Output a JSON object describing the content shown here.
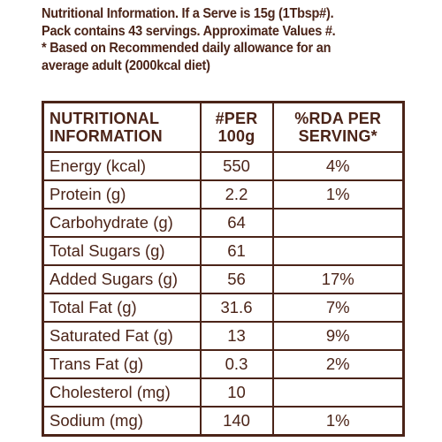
{
  "intro": [
    "Nutritional Information. If a Serve is 15g (1Tbsp#).",
    "Pack contains 43 servings. Approximate Values #.",
    "* Based on Recommended daily allowance for an",
    "average adult (2000kcal diet)"
  ],
  "table": {
    "headers": {
      "col1_line1": "NUTRITIONAL",
      "col1_line2": "INFORMATION",
      "col2_line1": "#PER",
      "col2_line2": "100g",
      "col3_line1": "%RDA PER",
      "col3_line2": "SERVING*"
    },
    "rows": [
      {
        "name": "Energy (kcal)",
        "per100": "550",
        "rda": "4%"
      },
      {
        "name": "Protein (g)",
        "per100": "2.2",
        "rda": "1%"
      },
      {
        "name": "Carbohydrate (g)",
        "per100": "64",
        "rda": ""
      },
      {
        "name": "Total Sugars (g)",
        "per100": "61",
        "rda": ""
      },
      {
        "name": "Added Sugars (g)",
        "per100": "56",
        "rda": "17%"
      },
      {
        "name": "Total Fat (g)",
        "per100": "31.6",
        "rda": "7%"
      },
      {
        "name": "Saturated Fat (g)",
        "per100": "13",
        "rda": "9%"
      },
      {
        "name": "Trans Fat (g)",
        "per100": "0.3",
        "rda": "2%"
      },
      {
        "name": "Cholesterol (mg)",
        "per100": "10",
        "rda": ""
      },
      {
        "name": "Sodium (mg)",
        "per100": "140",
        "rda": "1%"
      }
    ]
  },
  "colors": {
    "text": "#4b2418",
    "background": "#ffffff"
  }
}
